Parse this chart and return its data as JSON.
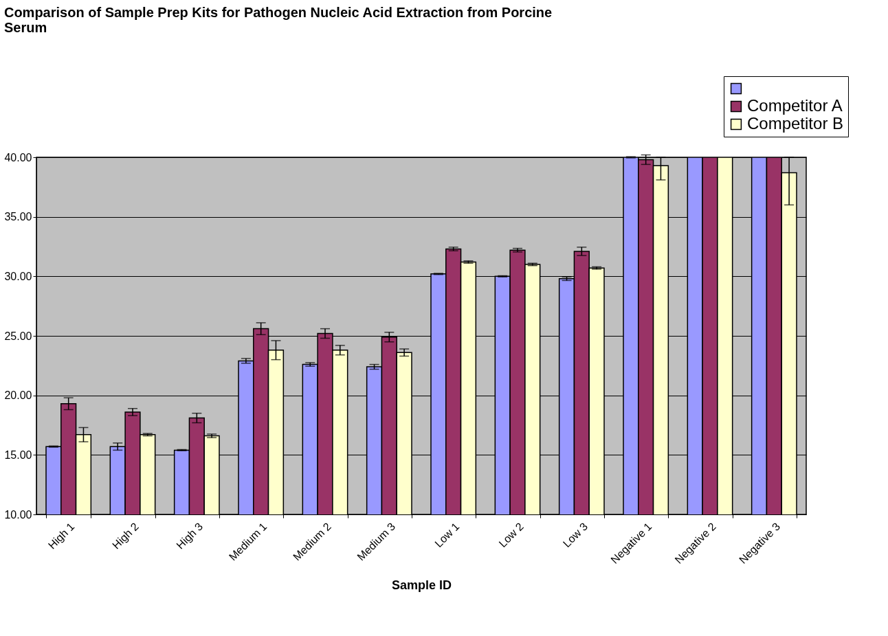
{
  "chart_data": {
    "type": "bar",
    "title": "Comparison of Sample Prep Kits for Pathogen Nucleic Acid Extraction from Porcine Serum",
    "xlabel": "Sample ID",
    "categories": [
      "High 1",
      "High 2",
      "High 3",
      "Medium 1",
      "Medium 2",
      "Medium 3",
      "Low 1",
      "Low 2",
      "Low 3",
      "Negative 1",
      "Negative 2",
      "Negative 3"
    ],
    "series": [
      {
        "color": "#9999ff",
        "values": [
          15.7,
          15.7,
          15.4,
          22.9,
          22.6,
          22.4,
          30.2,
          30.0,
          29.8,
          40.0,
          40.0,
          40.0
        ],
        "errors": [
          0.05,
          0.3,
          0.05,
          0.2,
          0.15,
          0.2,
          0.05,
          0.05,
          0.15,
          0.05,
          null,
          null
        ]
      },
      {
        "name": "Competitor A",
        "color": "#993366",
        "values": [
          19.3,
          18.6,
          18.1,
          25.6,
          25.2,
          24.9,
          32.3,
          32.2,
          32.1,
          39.8,
          40.0,
          40.0
        ],
        "errors": [
          0.5,
          0.3,
          0.4,
          0.5,
          0.4,
          0.4,
          0.15,
          0.15,
          0.35,
          0.4,
          null,
          null
        ]
      },
      {
        "name": "Competitor B",
        "color": "#ffffcc",
        "values": [
          16.7,
          16.7,
          16.6,
          23.8,
          23.8,
          23.6,
          31.2,
          31.0,
          30.7,
          39.3,
          40.0,
          38.7
        ],
        "errors": [
          0.6,
          0.1,
          0.15,
          0.8,
          0.4,
          0.3,
          0.1,
          0.1,
          0.1,
          [
            38.1,
            40.0
          ],
          null,
          [
            36.0,
            40.0
          ]
        ]
      }
    ],
    "ylim": [
      10,
      40
    ],
    "yticks": [
      {
        "value": 10,
        "label": "10.00"
      },
      {
        "value": 15,
        "label": "15.00"
      },
      {
        "value": 20,
        "label": "20.00"
      },
      {
        "value": 25,
        "label": "25.00"
      },
      {
        "value": 30,
        "label": "30.00"
      },
      {
        "value": 35,
        "label": "35.00"
      },
      {
        "value": 40,
        "label": "40.00"
      }
    ],
    "grid": "y",
    "legend": "top right"
  }
}
